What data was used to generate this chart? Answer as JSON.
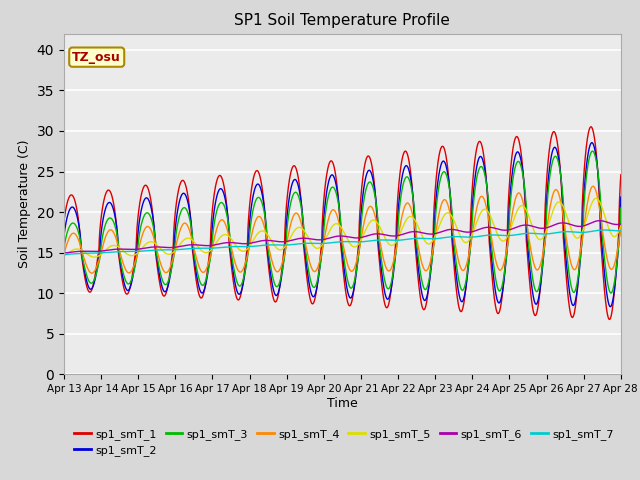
{
  "title": "SP1 Soil Temperature Profile",
  "xlabel": "Time",
  "ylabel": "Soil Temperature (C)",
  "ylim": [
    0,
    42
  ],
  "yticks": [
    0,
    5,
    10,
    15,
    20,
    25,
    30,
    35,
    40
  ],
  "date_labels": [
    "Apr 13",
    "Apr 14",
    "Apr 15",
    "Apr 16",
    "Apr 17",
    "Apr 18",
    "Apr 19",
    "Apr 20",
    "Apr 21",
    "Apr 22",
    "Apr 23",
    "Apr 24",
    "Apr 25",
    "Apr 26",
    "Apr 27",
    "Apr 28"
  ],
  "series_colors": {
    "sp1_smT_1": "#dd0000",
    "sp1_smT_2": "#0000dd",
    "sp1_smT_3": "#00bb00",
    "sp1_smT_4": "#ff8800",
    "sp1_smT_5": "#dddd00",
    "sp1_smT_6": "#aa00aa",
    "sp1_smT_7": "#00cccc"
  },
  "legend_labels": [
    "sp1_smT_1",
    "sp1_smT_2",
    "sp1_smT_3",
    "sp1_smT_4",
    "sp1_smT_5",
    "sp1_smT_6",
    "sp1_smT_7"
  ],
  "tz_label": "TZ_osu",
  "fig_bg_color": "#d8d8d8",
  "plot_bg_color": "#ebebeb",
  "n_days": 15,
  "n_points_per_day": 288
}
